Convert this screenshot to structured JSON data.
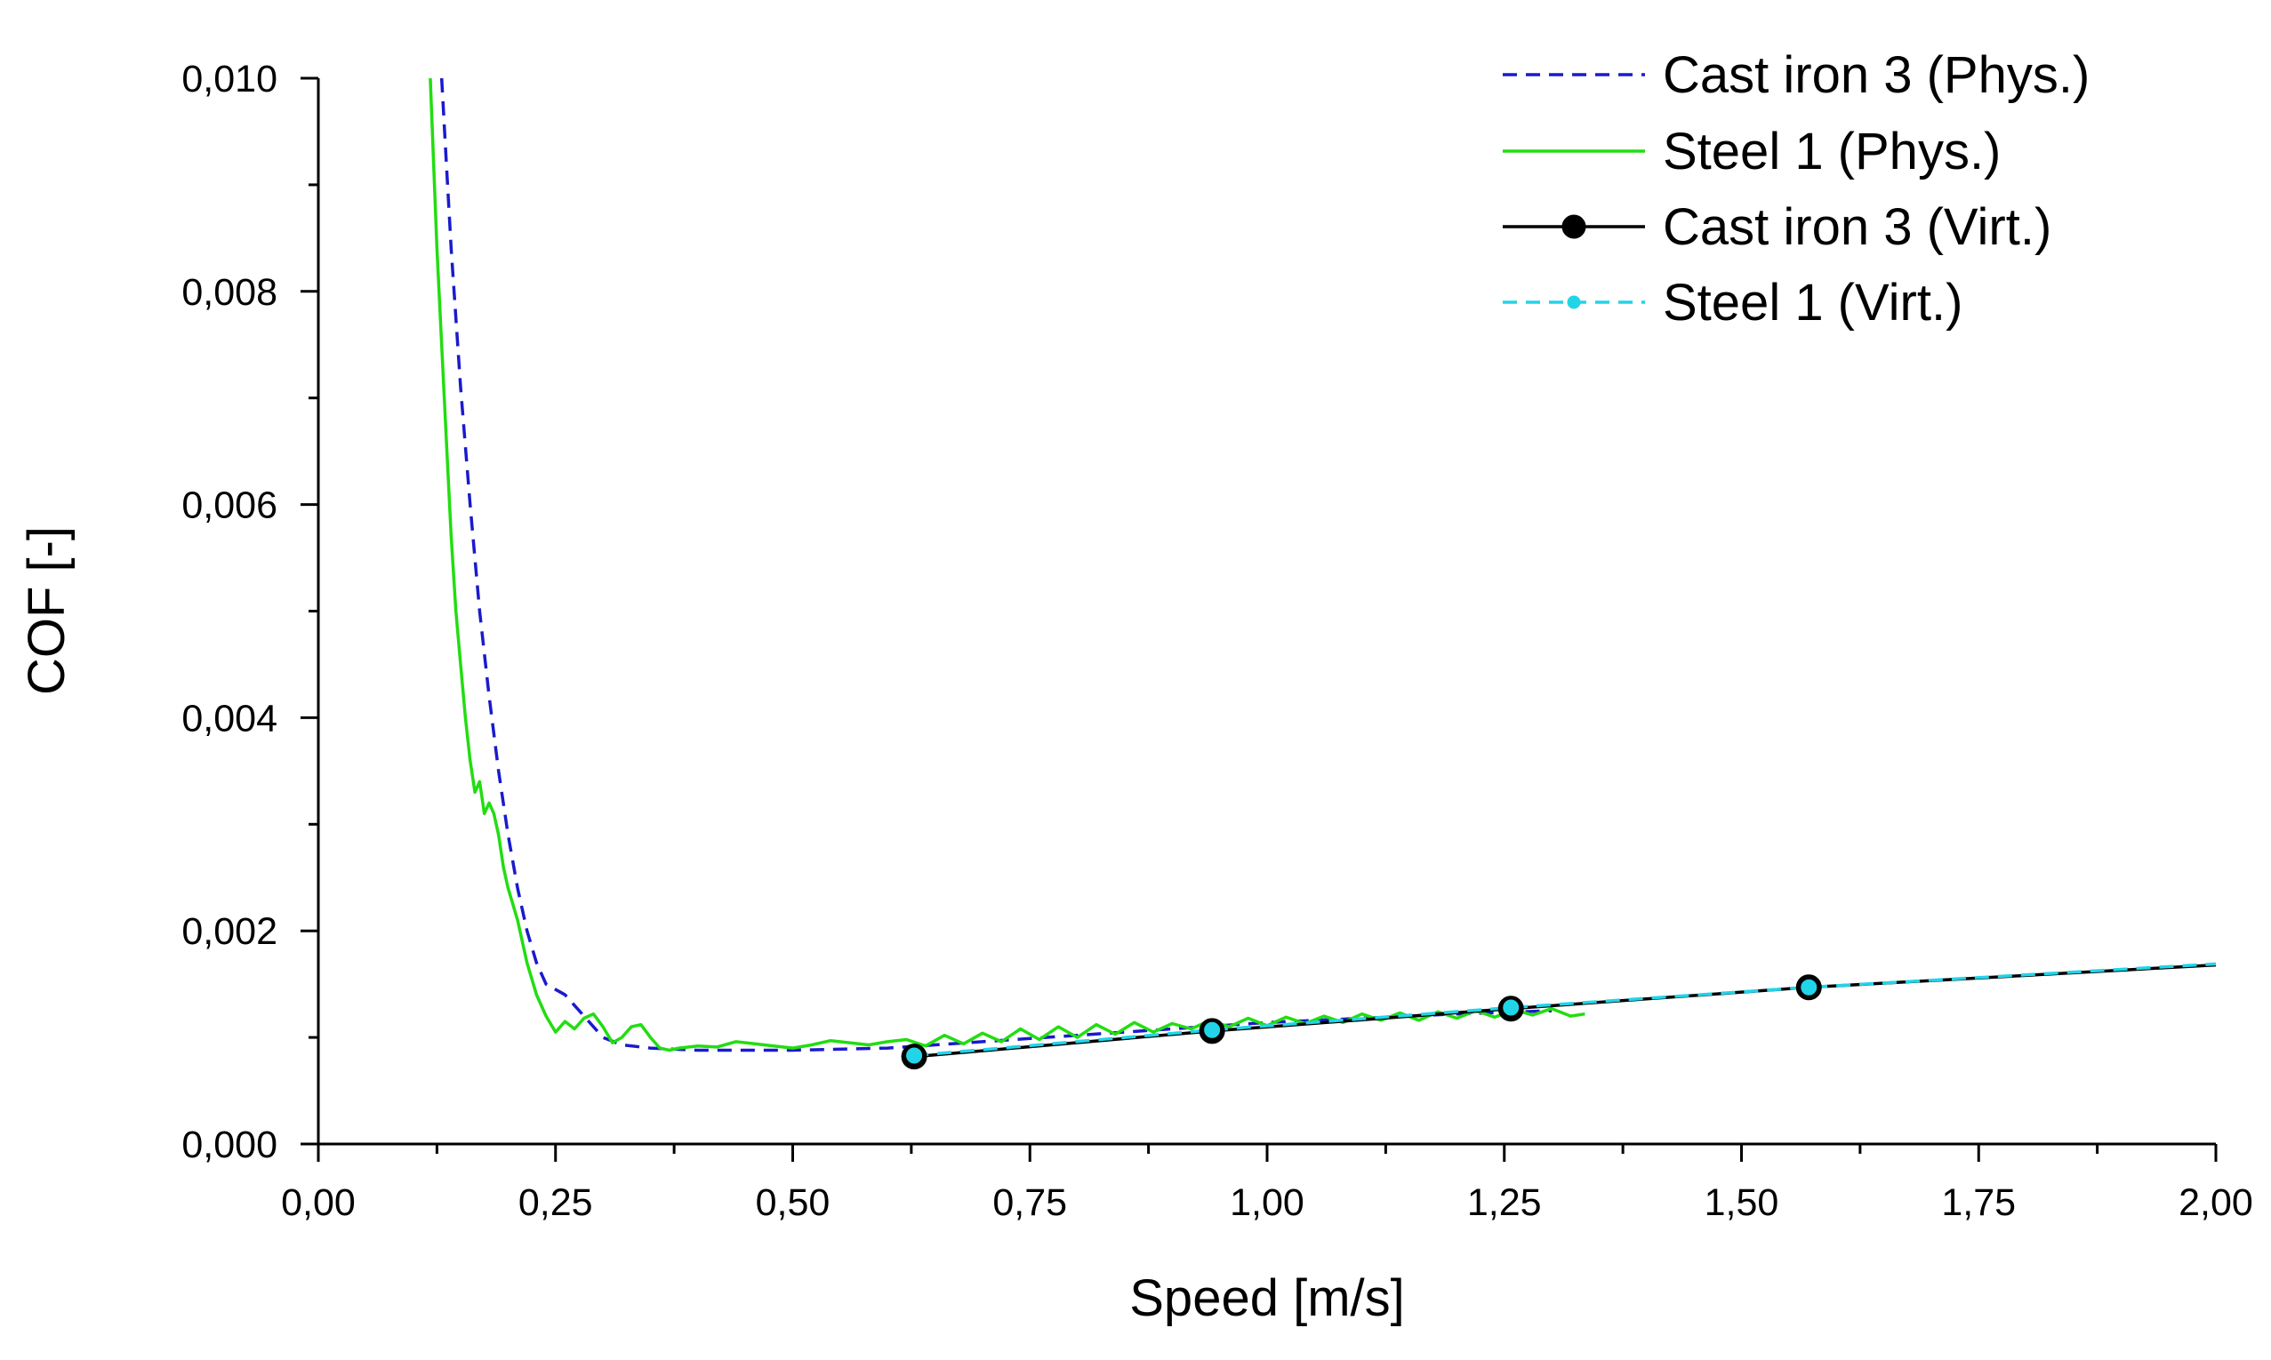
{
  "chart_data": {
    "type": "line",
    "title": "",
    "xlabel": "Speed [m/s]",
    "ylabel": "COF [-]",
    "xlim": [
      0,
      2.0
    ],
    "ylim": [
      0,
      0.01
    ],
    "x_ticks": [
      "0,00",
      "0,25",
      "0,50",
      "0,75",
      "1,00",
      "1,25",
      "1,50",
      "1,75",
      "2,00"
    ],
    "y_ticks": [
      "0,000",
      "0,002",
      "0,004",
      "0,006",
      "0,008",
      "0,010"
    ],
    "grid": false,
    "legend_position": "top-right",
    "series": [
      {
        "name": "Cast iron 3 (Phys.)",
        "color": "#1a1acd",
        "style": "dashed",
        "x": [
          0.13,
          0.135,
          0.14,
          0.15,
          0.16,
          0.17,
          0.18,
          0.19,
          0.2,
          0.21,
          0.22,
          0.23,
          0.24,
          0.26,
          0.28,
          0.3,
          0.32,
          0.35,
          0.4,
          0.5,
          0.6,
          0.7,
          0.8,
          0.9,
          1.0,
          1.1,
          1.2,
          1.3
        ],
        "y": [
          0.01,
          0.0092,
          0.0084,
          0.0071,
          0.006,
          0.005,
          0.0042,
          0.0035,
          0.0029,
          0.0024,
          0.002,
          0.0017,
          0.0015,
          0.0014,
          0.0012,
          0.001,
          0.00093,
          0.0009,
          0.00088,
          0.00088,
          0.0009,
          0.00096,
          0.00102,
          0.00108,
          0.00114,
          0.00118,
          0.00122,
          0.00125
        ]
      },
      {
        "name": "Steel 1 (Phys.)",
        "color": "#22dd11",
        "style": "solid",
        "x": [
          0.118,
          0.125,
          0.13,
          0.135,
          0.14,
          0.145,
          0.15,
          0.155,
          0.16,
          0.165,
          0.17,
          0.175,
          0.18,
          0.185,
          0.19,
          0.195,
          0.2,
          0.21,
          0.22,
          0.23,
          0.24,
          0.25,
          0.26,
          0.27,
          0.28,
          0.29,
          0.3,
          0.31,
          0.32,
          0.33,
          0.34,
          0.35,
          0.36,
          0.37,
          0.38,
          0.4,
          0.42,
          0.44,
          0.46,
          0.48,
          0.5,
          0.52,
          0.54,
          0.56,
          0.58,
          0.6,
          0.62,
          0.64,
          0.66,
          0.68,
          0.7,
          0.72,
          0.74,
          0.76,
          0.78,
          0.8,
          0.82,
          0.84,
          0.86,
          0.88,
          0.9,
          0.92,
          0.94,
          0.96,
          0.98,
          1.0,
          1.02,
          1.04,
          1.06,
          1.08,
          1.1,
          1.12,
          1.14,
          1.16,
          1.18,
          1.2,
          1.22,
          1.24,
          1.26,
          1.28,
          1.3,
          1.32,
          1.335
        ],
        "y": [
          0.01,
          0.0084,
          0.0075,
          0.0066,
          0.0057,
          0.005,
          0.0045,
          0.004,
          0.0036,
          0.0033,
          0.0034,
          0.0031,
          0.0032,
          0.0031,
          0.0029,
          0.0026,
          0.0024,
          0.0021,
          0.0017,
          0.0014,
          0.0012,
          0.00105,
          0.00115,
          0.00108,
          0.00118,
          0.00122,
          0.0011,
          0.00095,
          0.001,
          0.0011,
          0.00112,
          0.001,
          0.0009,
          0.00088,
          0.0009,
          0.00092,
          0.00091,
          0.00096,
          0.00094,
          0.00092,
          0.0009,
          0.00093,
          0.00097,
          0.00095,
          0.00093,
          0.00096,
          0.00098,
          0.00092,
          0.00102,
          0.00094,
          0.00104,
          0.00096,
          0.00108,
          0.00098,
          0.0011,
          0.001,
          0.00112,
          0.00103,
          0.00114,
          0.00105,
          0.00113,
          0.00108,
          0.00116,
          0.0011,
          0.00118,
          0.00111,
          0.00119,
          0.00113,
          0.0012,
          0.00114,
          0.00122,
          0.00116,
          0.00123,
          0.00116,
          0.00124,
          0.00118,
          0.00125,
          0.00119,
          0.00126,
          0.00121,
          0.00127,
          0.0012,
          0.00122
        ]
      },
      {
        "name": "Cast iron 3 (Virt.)",
        "color": "#000000",
        "style": "solid",
        "marker": "circle",
        "x": [
          0.628,
          0.942,
          1.257,
          1.571,
          2.0
        ],
        "y": [
          0.00082,
          0.00106,
          0.00127,
          0.00147,
          0.00168
        ],
        "marker_x": [
          0.628,
          0.942,
          1.257,
          1.571
        ]
      },
      {
        "name": "Steel 1 (Virt.)",
        "color": "#22d4e8",
        "style": "dashed",
        "marker": "circle",
        "x": [
          0.628,
          0.942,
          1.257,
          1.571,
          2.0
        ],
        "y": [
          0.00083,
          0.00107,
          0.00128,
          0.00147,
          0.00169
        ],
        "marker_x": [
          0.628,
          0.942,
          1.257,
          1.571
        ]
      }
    ]
  }
}
